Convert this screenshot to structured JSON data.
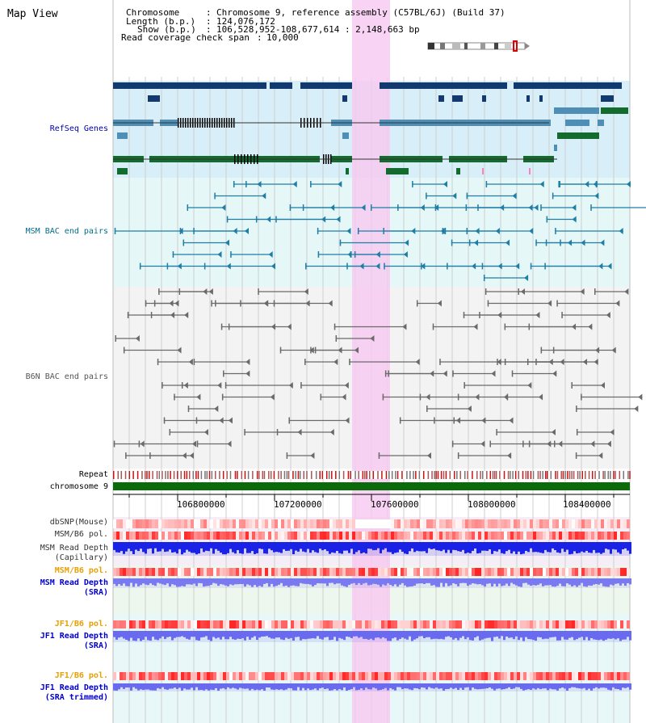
{
  "title": "Map View",
  "info": {
    "chromosome_label": "Chromosome",
    "chromosome_value": "Chromosome 9, reference assembly (C57BL/6J) (Build 37)",
    "length_label": "Length (b.p.)",
    "length_value": "124,076,172",
    "show_label": "Show (b.p.)",
    "show_value": "106,528,952-108,677,614 : 2,148,663 bp",
    "coverage_label": "Read coverage check span",
    "coverage_value": "10,000"
  },
  "tracks": {
    "refseq": "RefSeq Genes",
    "msm_bac": "MSM BAC end pairs",
    "b6n_bac": "B6N BAC end pairs",
    "repeat": "Repeat",
    "chromosome": "chromosome 9",
    "dbsnp": "dbSNP(Mouse)",
    "msm_b6_pol": "MSM/B6 pol.",
    "msm_depth_cap_1": "MSM Read Depth",
    "msm_depth_cap_2": "(Capillary)",
    "msm_b6_pol_2": "MSM/B6 pol.",
    "msm_depth_sra_1": "MSM Read Depth",
    "msm_depth_sra_2": "(SRA)",
    "jf1_b6_pol": "JF1/B6 pol.",
    "jf1_depth_sra_1": "JF1 Read Depth",
    "jf1_depth_sra_2": "(SRA)",
    "jf1_b6_pol_2": "JF1/B6 pol.",
    "jf1_depth_trim_1": "JF1 Read Depth",
    "jf1_depth_trim_2": "(SRA trimmed)"
  },
  "axis": {
    "ticks": [
      "106800000",
      "107200000",
      "107600000",
      "108000000",
      "108400000"
    ]
  },
  "colors": {
    "refseq_label": "#0000aa",
    "msm_bac_label": "#006f8a",
    "b6n_bac_label": "#555555",
    "pol_orange": "#e8a000",
    "depth_blue": "#0000cc",
    "highlight": "#f7c8f0"
  }
}
